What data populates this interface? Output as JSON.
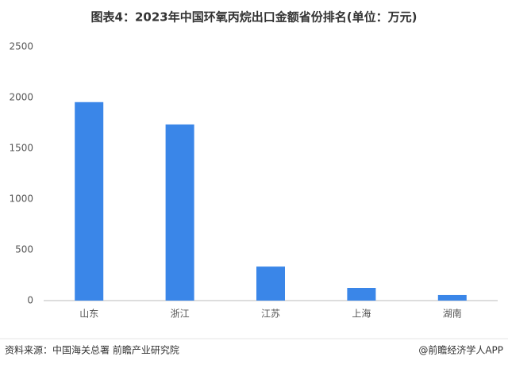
{
  "chart_data": {
    "type": "bar",
    "title": "图表4：2023年中国环氧丙烷出口金额省份排名(单位：万元)",
    "categories": [
      "山东",
      "浙江",
      "江苏",
      "上海",
      "湖南"
    ],
    "values": [
      1955,
      1735,
      335,
      125,
      55
    ],
    "color": "#3a86e8",
    "ylim": [
      0,
      2500
    ],
    "yticks": [
      0,
      500,
      1000,
      1500,
      2000,
      2500
    ],
    "grid": false
  },
  "footer": {
    "source": "资料来源：中国海关总署 前瞻产业研究院",
    "credit": "@前瞻经济学人APP"
  }
}
